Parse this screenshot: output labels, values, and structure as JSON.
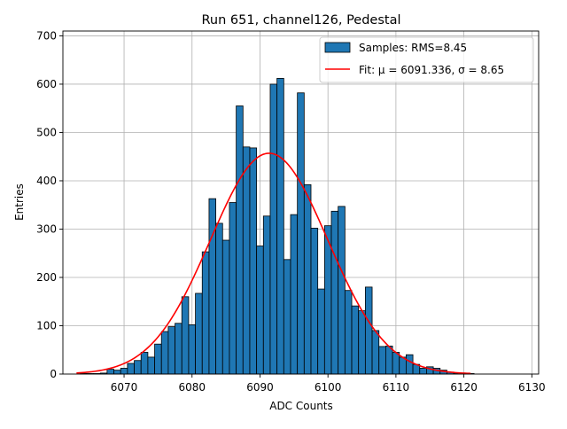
{
  "chart_data": {
    "type": "bar",
    "title": "Run 651, channel126, Pedestal",
    "xlabel": "ADC Counts",
    "ylabel": "Entries",
    "xlim": [
      6061,
      6131
    ],
    "ylim": [
      0,
      710
    ],
    "xticks": [
      6070,
      6080,
      6090,
      6100,
      6110,
      6120,
      6130
    ],
    "yticks": [
      0,
      100,
      200,
      300,
      400,
      500,
      600,
      700
    ],
    "grid": true,
    "legend_position": "top-right",
    "colors": {
      "bar_fill": "#1f77b4",
      "bar_edge": "#000000",
      "fit_line": "#ff0000",
      "grid": "#b0b0b0"
    },
    "series": [
      {
        "name": "Samples: RMS=8.45",
        "kind": "histogram",
        "bin_width": 1,
        "bin_centers": [
          6064,
          6065,
          6066,
          6067,
          6068,
          6069,
          6070,
          6071,
          6072,
          6073,
          6074,
          6075,
          6076,
          6077,
          6078,
          6079,
          6080,
          6081,
          6082,
          6083,
          6084,
          6085,
          6086,
          6087,
          6088,
          6089,
          6090,
          6091,
          6092,
          6093,
          6094,
          6095,
          6096,
          6097,
          6098,
          6099,
          6100,
          6101,
          6102,
          6103,
          6104,
          6105,
          6106,
          6107,
          6108,
          6109,
          6110,
          6111,
          6112,
          6113,
          6114,
          6115,
          6116,
          6117,
          6118,
          6119,
          6120,
          6121
        ],
        "values": [
          1,
          1,
          1,
          2,
          10,
          8,
          12,
          22,
          28,
          45,
          35,
          62,
          88,
          98,
          105,
          160,
          102,
          167,
          253,
          363,
          312,
          277,
          355,
          555,
          470,
          468,
          265,
          327,
          600,
          612,
          237,
          330,
          582,
          392,
          302,
          176,
          307,
          337,
          347,
          173,
          141,
          131,
          180,
          90,
          57,
          58,
          45,
          35,
          40,
          20,
          12,
          15,
          12,
          8,
          4,
          2,
          1,
          1
        ]
      },
      {
        "name": "Fit: μ = 6091.336, σ = 8.65",
        "kind": "gaussian-fit",
        "mu": 6091.336,
        "sigma": 8.65,
        "amplitude": 457,
        "x_range": [
          6063,
          6121
        ]
      }
    ]
  }
}
